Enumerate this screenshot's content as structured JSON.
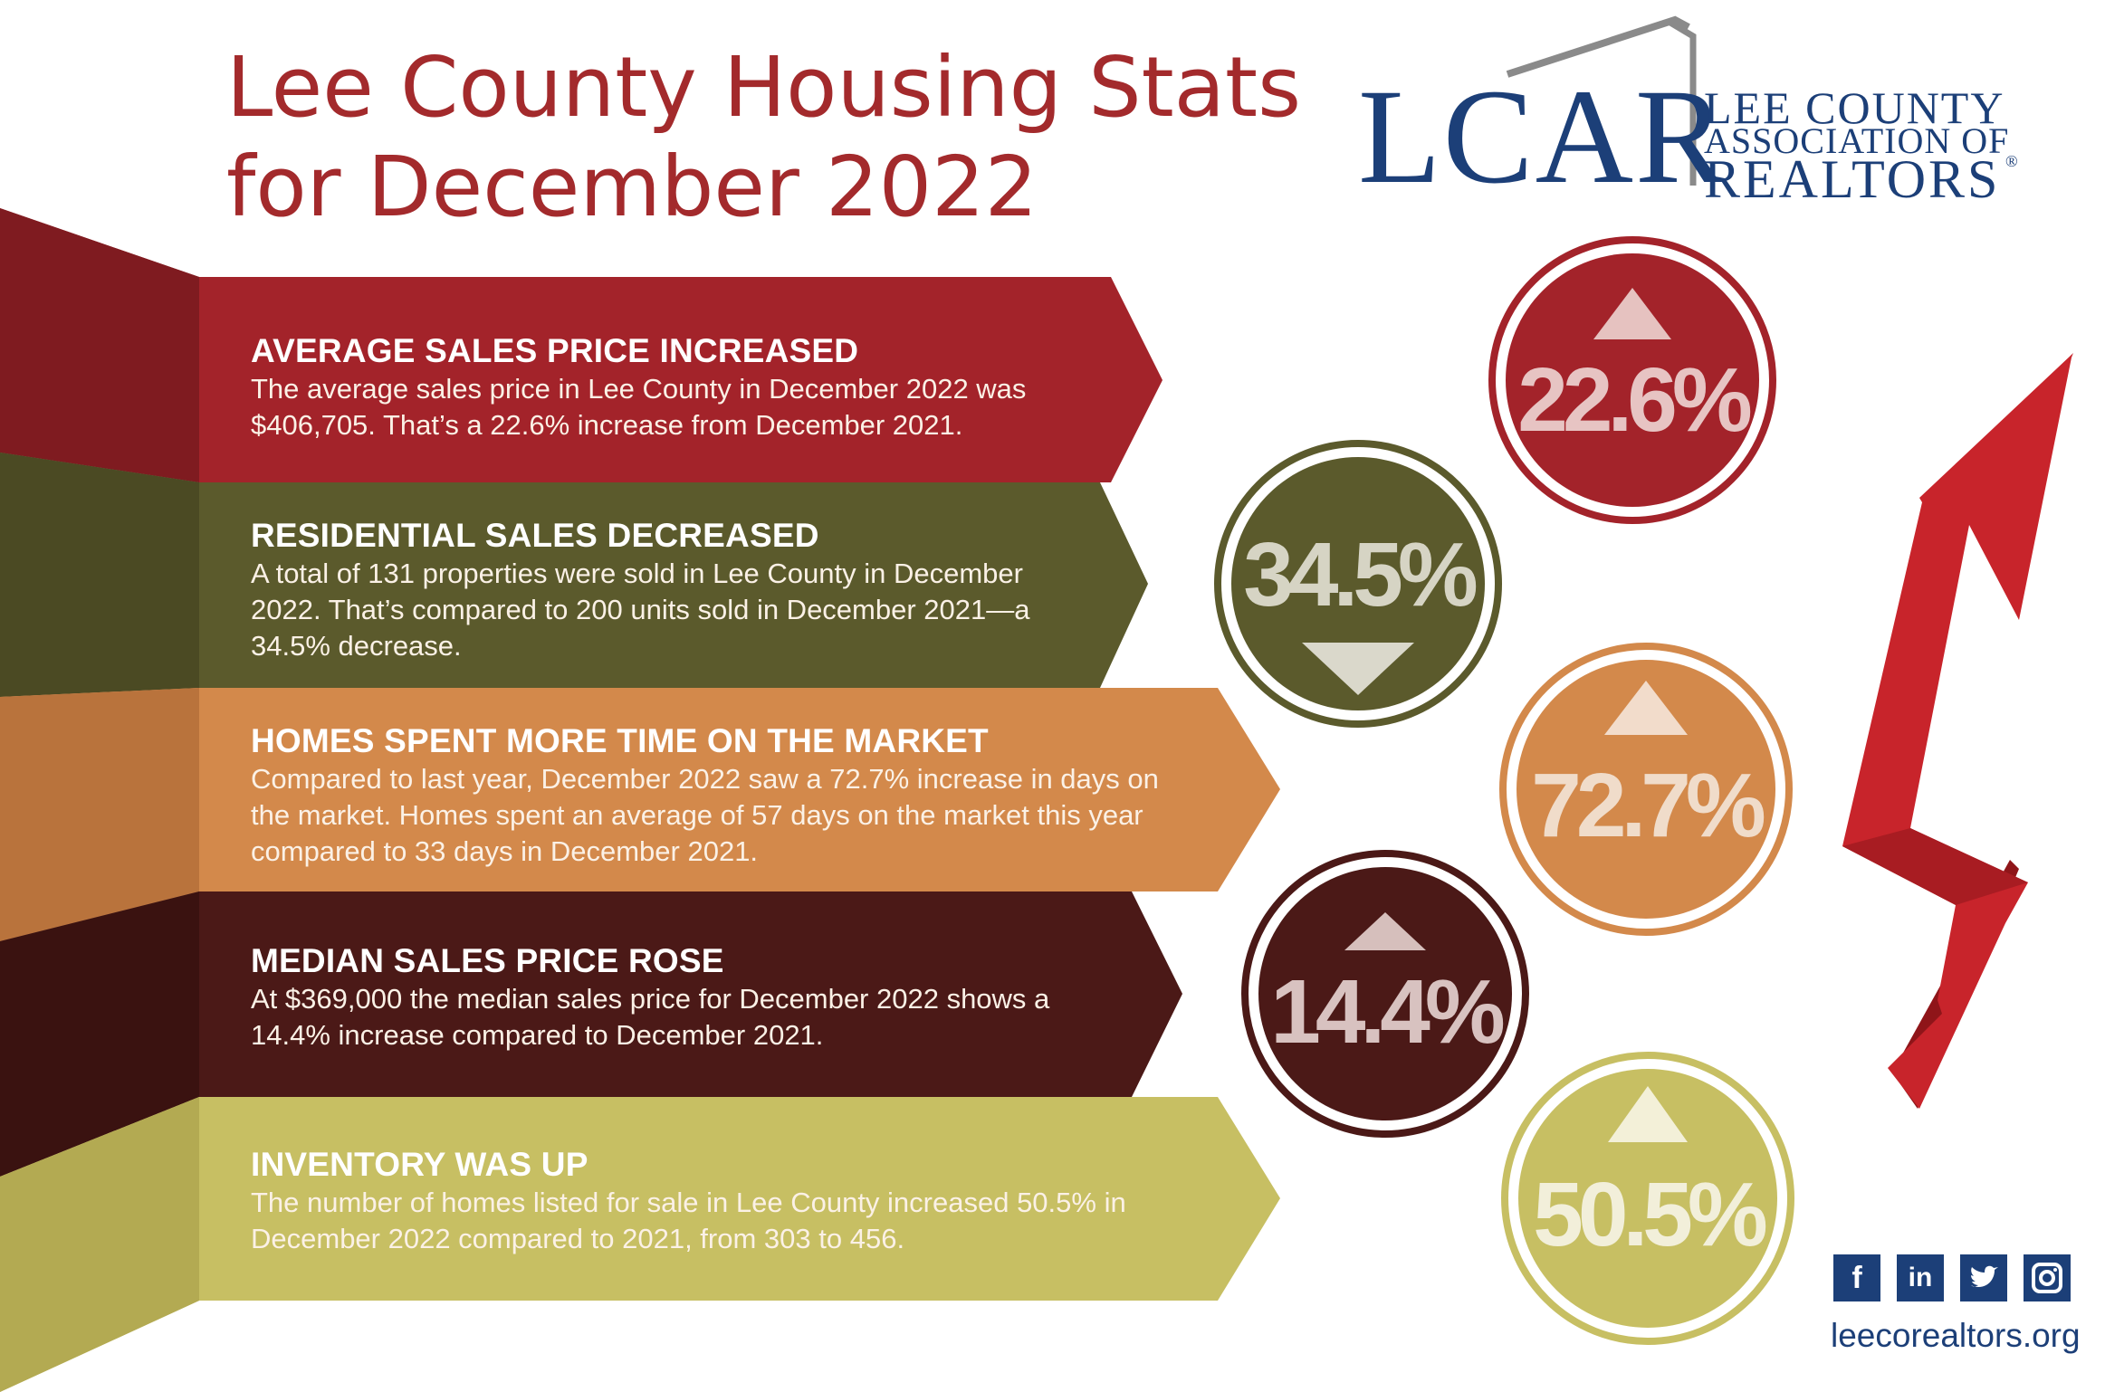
{
  "title": {
    "line1": "Lee County Housing Stats",
    "line2": "for December 2022"
  },
  "logo": {
    "abbr": "LCAR",
    "line1": "LEE COUNTY",
    "line2": "ASSOCIATION OF",
    "line3": "REALTORS",
    "reg": "®"
  },
  "stats": [
    {
      "heading": "AVERAGE SALES PRICE INCREASED",
      "body": "The average sales price in Lee County in December 2022 was $406,705. That’s a 22.6% increase from December 2021.",
      "percent": "22.6%",
      "direction": "up",
      "color": "#a3232a"
    },
    {
      "heading": "RESIDENTIAL SALES DECREASED",
      "body": "A total of 131 properties were sold in Lee County in December 2022. That’s compared to 200 units sold in December 2021—a 34.5% decrease.",
      "percent": "34.5%",
      "direction": "down",
      "color": "#5b5a2c"
    },
    {
      "heading": "HOMES SPENT MORE TIME ON THE MARKET",
      "body": "Compared to last year, December 2022 saw a 72.7% increase in days on the market. Homes spent an average of 57 days on the market this year compared to 33 days in December 2021.",
      "percent": "72.7%",
      "direction": "up",
      "color": "#d3894b"
    },
    {
      "heading": "MEDIAN SALES PRICE ROSE",
      "body": "At $369,000 the median sales price for December 2022 shows a 14.4% increase compared to December 2021.",
      "percent": "14.4%",
      "direction": "up",
      "color": "#4b1917"
    },
    {
      "heading": "INVENTORY WAS UP",
      "body": "The number of homes listed for sale in Lee County increased 50.5% in December 2022 compared to 2021, from 303 to 456.",
      "percent": "50.5%",
      "direction": "up",
      "color": "#c7bf63"
    }
  ],
  "social": {
    "icons": [
      "facebook-icon",
      "linkedin-icon",
      "twitter-icon",
      "instagram-icon"
    ],
    "website": "leecorealtors.org"
  },
  "colors": {
    "title": "#a32a2c",
    "brand_blue": "#1c3f78",
    "arrow_red": "#c8242b"
  }
}
